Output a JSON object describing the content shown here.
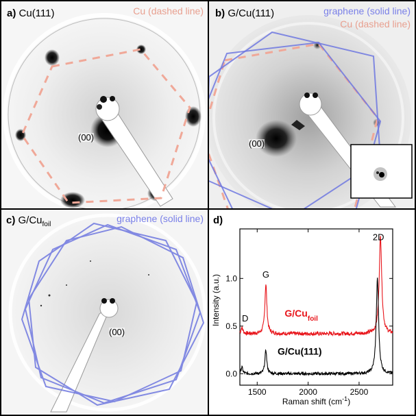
{
  "panels": {
    "a": {
      "letter": "a)",
      "title": "Cu(111)",
      "legend_cu": "Cu (dashed line)",
      "spot": "(00)"
    },
    "b": {
      "letter": "b)",
      "title": "G/Cu(111)",
      "legend_graphene": "graphene (solid line)",
      "legend_cu": "Cu (dashed line)",
      "spot": "(00)"
    },
    "c": {
      "letter": "c)",
      "title_main": "G/Cu",
      "title_sub": "foil",
      "legend_graphene": "graphene (solid line)",
      "spot": "(00)"
    },
    "d": {
      "letter": "d)"
    }
  },
  "colors": {
    "cu_dashed": "#f0a898",
    "graphene_solid": "#6f78e0",
    "legend_cu_text": "#e8a090",
    "legend_graphene_text": "#7a80e8",
    "raman_foil": "#e8141a",
    "raman_cu111": "#000000"
  },
  "chart_data": {
    "type": "line",
    "xlabel": "Raman shift (cm",
    "xlabel_sup": "-1",
    "xlabel_end": ")",
    "ylabel": "Intensity (a.u.)",
    "xlim": [
      1330,
      2830
    ],
    "ylim": [
      -0.12,
      1.52
    ],
    "xticks": [
      1500,
      2000,
      2500
    ],
    "yticks": [
      0.0,
      0.5,
      1.0
    ],
    "ytick_labels": [
      "0.0",
      "0.5",
      "1.0"
    ],
    "peak_labels": [
      {
        "text": "D",
        "x": 1350,
        "y": 0.55
      },
      {
        "text": "G",
        "x": 1585,
        "y": 1.01
      },
      {
        "text": "2D",
        "x": 2690,
        "y": 1.4
      }
    ],
    "series": [
      {
        "name": "G/Cu",
        "name_sub": "foil",
        "color": "#e8141a",
        "baseline": 0.42,
        "noise": 0.02,
        "peaks": [
          {
            "x0": 1350,
            "height": 0.06,
            "width": 12
          },
          {
            "x0": 1585,
            "height": 0.52,
            "width": 12
          },
          {
            "x0": 2710,
            "height": 1.02,
            "width": 15
          }
        ]
      },
      {
        "name": "G/Cu(111)",
        "color": "#000000",
        "baseline": 0.0,
        "noise": 0.015,
        "peaks": [
          {
            "x0": 1350,
            "height": 0.07,
            "width": 10
          },
          {
            "x0": 1585,
            "height": 0.25,
            "width": 11
          },
          {
            "x0": 2680,
            "height": 1.0,
            "width": 14
          }
        ]
      }
    ]
  }
}
